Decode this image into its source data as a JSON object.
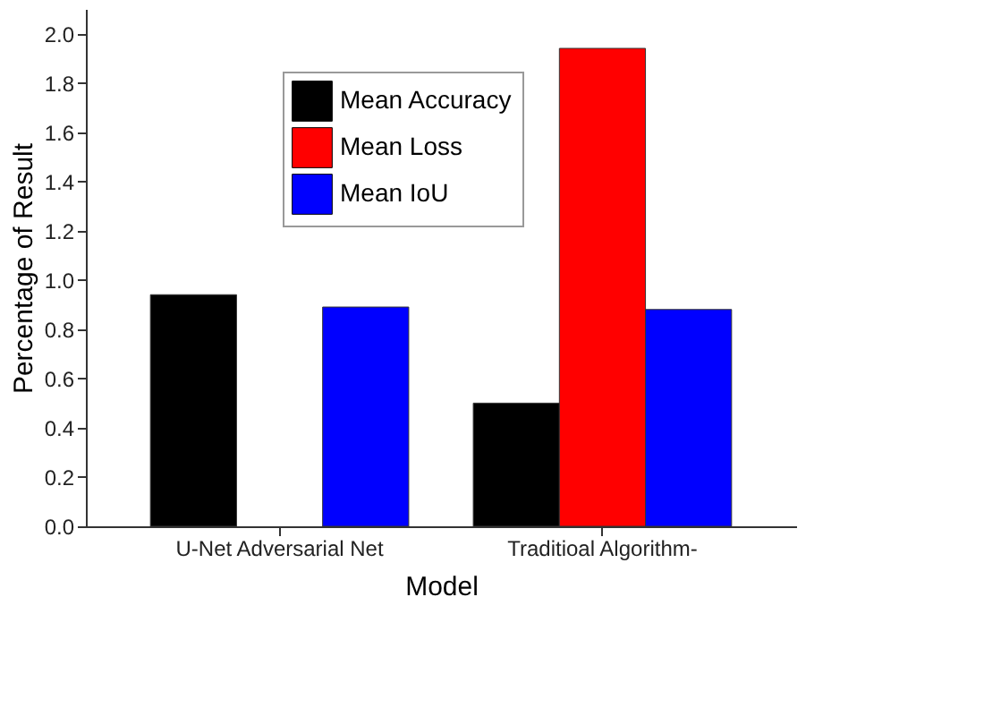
{
  "chart_data": {
    "type": "bar",
    "xlabel": "Model",
    "ylabel": "Percentage of Result",
    "categories": [
      "U-Net Adversarial Net",
      "Traditioal Algorithm-"
    ],
    "series": [
      {
        "name": "Mean Accuracy",
        "color": "#000000",
        "values": [
          0.94,
          0.5
        ]
      },
      {
        "name": "Mean Loss",
        "color": "#ff0000",
        "values": [
          null,
          1.94
        ]
      },
      {
        "name": "Mean IoU",
        "color": "#0000ff",
        "values": [
          0.89,
          0.88
        ]
      }
    ],
    "ylim": [
      0,
      2.1
    ],
    "yticks": [
      {
        "value": 0,
        "label": "0.0"
      },
      0.2,
      0.4,
      0.6,
      0.8,
      {
        "value": 1,
        "label": "1.0"
      },
      1.2,
      1.4,
      1.6,
      1.8,
      {
        "value": 2,
        "label": "2.0"
      }
    ],
    "grid": false,
    "legend": "top left"
  }
}
